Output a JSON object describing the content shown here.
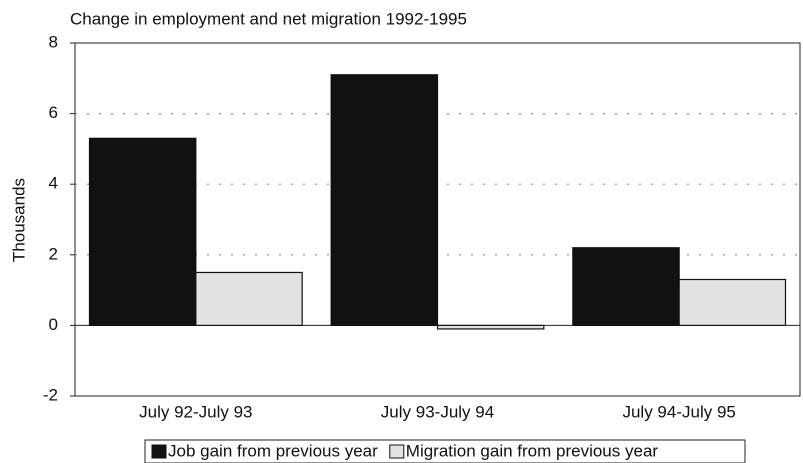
{
  "chart_data": {
    "type": "bar",
    "title": "Change in employment and net migration 1992-1995",
    "y_label": "Thousands",
    "categories": [
      "July 92-July 93",
      "July 93-July 94",
      "July 94-July 95"
    ],
    "series": [
      {
        "name": "Job gain from previous year",
        "color": "#111111",
        "values": [
          5.3,
          7.1,
          2.2
        ]
      },
      {
        "name": "Migration gain from previous year",
        "color": "#e2e2e2",
        "values": [
          1.5,
          -0.1,
          1.3
        ]
      }
    ],
    "ylim": [
      -2,
      8
    ],
    "yticks": [
      -2,
      0,
      2,
      4,
      6,
      8
    ],
    "grid": true,
    "legend": "bottom"
  }
}
